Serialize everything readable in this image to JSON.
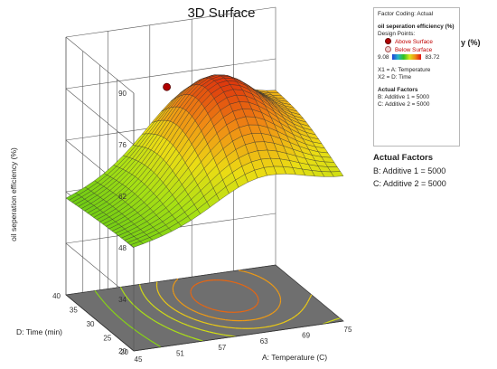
{
  "title": "3D Surface",
  "legend": {
    "factor_coding": "Factor Coding: Actual",
    "response": "oil seperation efficiency  (%)",
    "design_points_label": "Design Points:",
    "above": "Above Surface",
    "below": "Below Surface",
    "range_min": "9.08",
    "range_max": "83.72",
    "x1": "X1 = A: Temperature",
    "x2": "X2 = D: Time",
    "actual_factors": "Actual Factors",
    "factor_b": "B: Additive 1  = 5000",
    "factor_c": "C: Additive 2 = 5000"
  },
  "outer_title": "y  (%)",
  "actual_panel": {
    "heading": "Actual Factors",
    "factor_b": "B: Additive 1  = 5000",
    "factor_c": "C: Additive 2 = 5000"
  },
  "chart_data": {
    "type": "surface",
    "title": "3D Surface",
    "xlabel": "A: Temperature (C)",
    "ylabel": "D: Time (min)",
    "zlabel": "oil seperation efficiency  (%)",
    "x_ticks": [
      "45",
      "51",
      "57",
      "63",
      "69",
      "75"
    ],
    "y_ticks": [
      "20",
      "25",
      "30",
      "35",
      "40"
    ],
    "z_ticks": [
      "20",
      "34",
      "48",
      "62",
      "76",
      "90"
    ],
    "xlim": [
      45,
      75
    ],
    "ylim": [
      20,
      40
    ],
    "zlim": [
      20,
      90
    ],
    "surface_corners": [
      {
        "temperature": 45,
        "time": 20,
        "efficiency": 48
      },
      {
        "temperature": 45,
        "time": 40,
        "efficiency": 46
      },
      {
        "temperature": 75,
        "time": 20,
        "efficiency": 58
      },
      {
        "temperature": 75,
        "time": 40,
        "efficiency": 65
      },
      {
        "temperature": 63,
        "time": 32,
        "efficiency": 80
      }
    ],
    "design_point": {
      "temperature": 57,
      "time": 35,
      "efficiency": 77,
      "position": "above"
    },
    "grid": true
  }
}
